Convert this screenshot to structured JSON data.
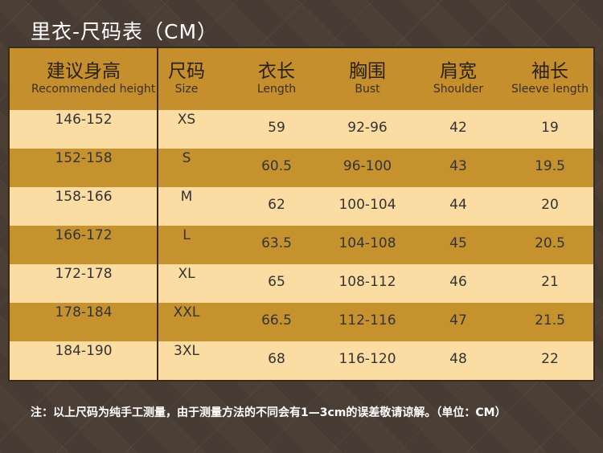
{
  "title": "里衣-尺码表（CM）",
  "table": {
    "header": [
      {
        "zh": "建议身高",
        "en": "Recommended height"
      },
      {
        "zh": "尺码",
        "en": "Size"
      },
      {
        "zh": "衣长",
        "en": "Length"
      },
      {
        "zh": "胸围",
        "en": "Bust"
      },
      {
        "zh": "肩宽",
        "en": "Shoulder"
      },
      {
        "zh": "袖长",
        "en": "Sleeve length"
      }
    ],
    "rows": [
      [
        "146-152",
        "XS",
        59,
        "92-96",
        42,
        19
      ],
      [
        "152-158",
        "S",
        60.5,
        "96-100",
        43,
        19.5
      ],
      [
        "158-166",
        "M",
        62,
        "100-104",
        44,
        20
      ],
      [
        "166-172",
        "L",
        63.5,
        "104-108",
        45,
        20.5
      ],
      [
        "172-178",
        "XL",
        65,
        "108-112",
        46,
        21
      ],
      [
        "178-184",
        "XXL",
        66.5,
        "112-116",
        47,
        21.5
      ],
      [
        "184-190",
        "3XL",
        68,
        "116-120",
        48,
        22
      ]
    ]
  },
  "note": "注：以上尺码为纯手工测量，由于测量方法的不同会有1—3cm的误差敬请谅解。（单位：CM）"
}
